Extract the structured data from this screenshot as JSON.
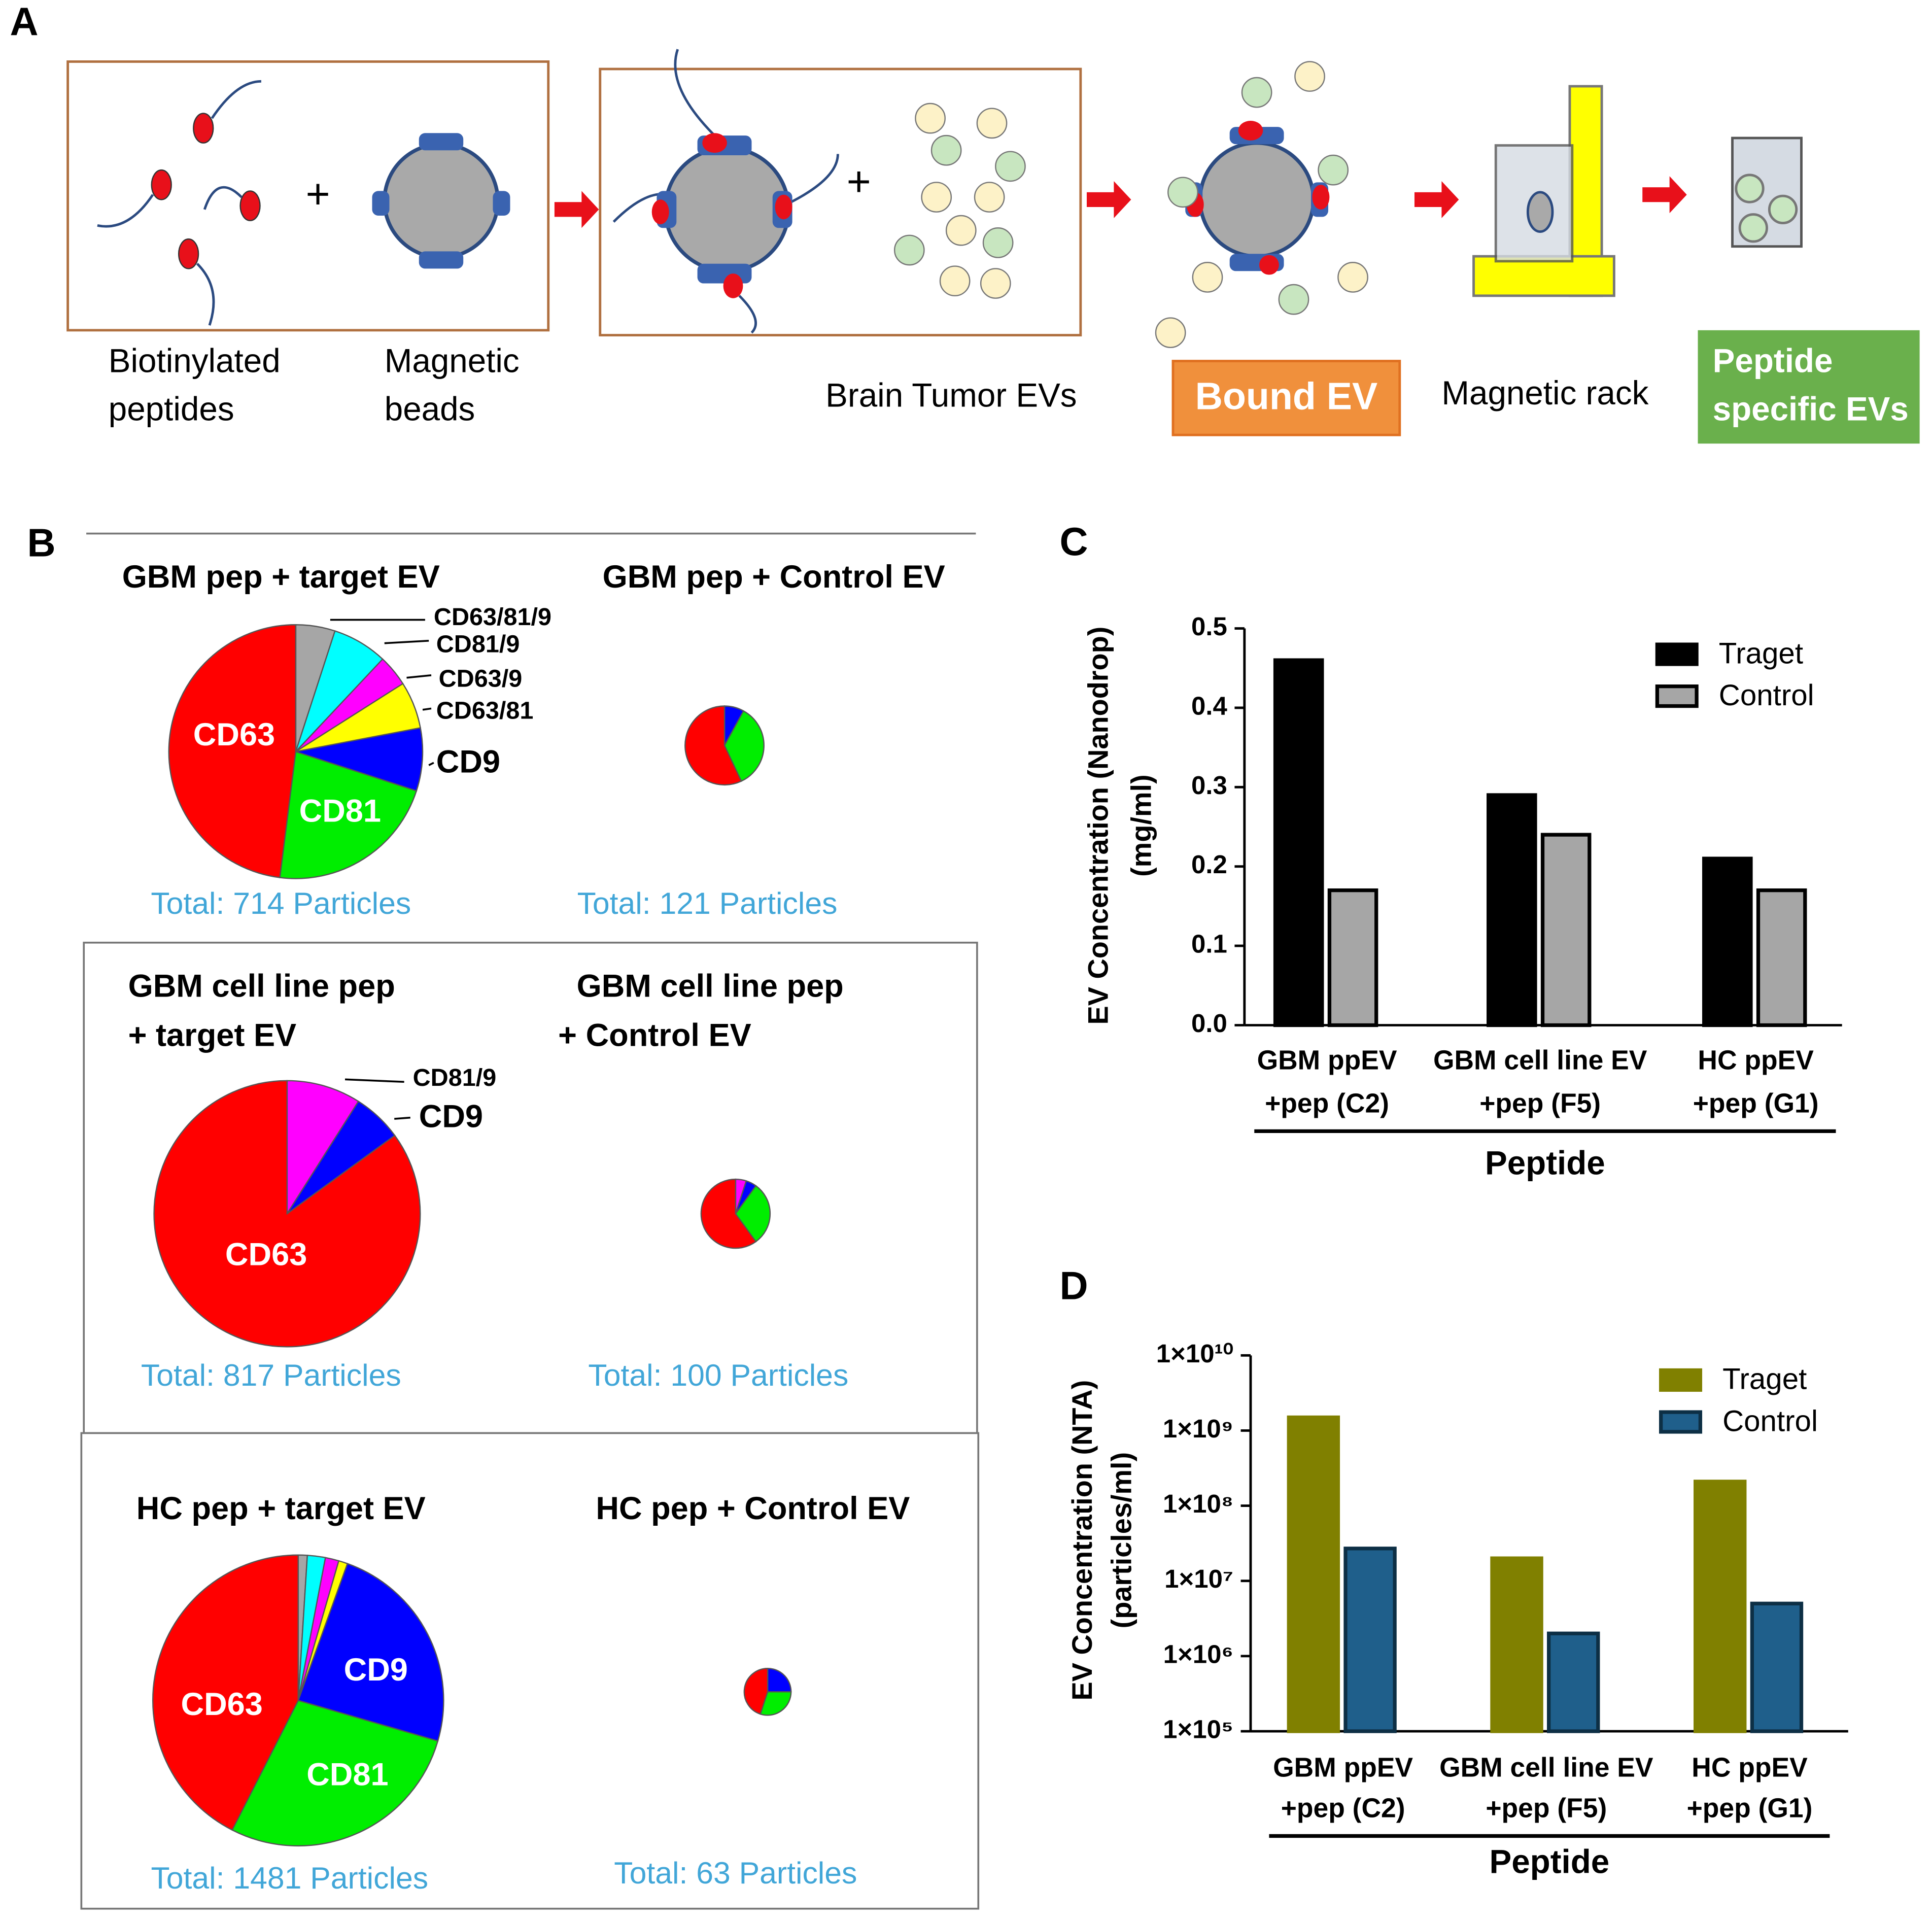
{
  "panel_labels": [
    "A",
    "B",
    "C",
    "D"
  ],
  "panel_a": {
    "peptides": [
      "Biotinylated",
      "peptides"
    ],
    "beads": [
      "Magnetic",
      "beads"
    ],
    "plus": [
      "+",
      "+"
    ],
    "tumor_evs": "Brain Tumor EVs",
    "bound": "Bound EV",
    "rack": "Magnetic rack",
    "specific": [
      "Peptide",
      "specific EVs"
    ]
  },
  "chart_data": [
    {
      "type": "pie",
      "title": [
        "GBM pep + target EV"
      ],
      "total_label": "Total: 714 Particles",
      "categories": [
        "CD63/81/9",
        "CD81/9",
        "CD63/9",
        "CD63/81",
        "CD9",
        "CD81",
        "CD63"
      ],
      "values": [
        5,
        7,
        4,
        6,
        8,
        22,
        48
      ],
      "colors": [
        "#a6a6a6",
        "#00ffff",
        "#ff00ff",
        "#ffff00",
        "#0000ff",
        "#00ee00",
        "#ff0000"
      ]
    },
    {
      "type": "pie",
      "title": [
        "GBM pep + Control EV"
      ],
      "total_label": "Total: 121 Particles",
      "categories": [
        null,
        null,
        null
      ],
      "values": [
        8,
        35,
        57
      ],
      "colors": [
        "#0000ff",
        "#00ee00",
        "#ff0000"
      ]
    },
    {
      "type": "pie",
      "title": [
        "GBM cell line pep",
        "+ target EV"
      ],
      "total_label": "Total: 817 Particles",
      "categories": [
        "CD81/9",
        "CD9",
        "CD63"
      ],
      "values": [
        9,
        6,
        85
      ],
      "colors": [
        "#ff00ff",
        "#0000ff",
        "#ff0000"
      ]
    },
    {
      "type": "pie",
      "title": [
        "GBM cell line pep",
        "+ Control EV"
      ],
      "total_label": "Total: 100 Particles",
      "categories": [
        null,
        null,
        null,
        null
      ],
      "values": [
        5,
        5,
        30,
        60
      ],
      "colors": [
        "#ff00ff",
        "#0000ff",
        "#00ee00",
        "#ff0000"
      ]
    },
    {
      "type": "pie",
      "title": [
        "HC pep + target EV"
      ],
      "total_label": "Total: 1481 Particles",
      "categories": [
        null,
        null,
        null,
        null,
        "CD9",
        "CD81",
        "CD63"
      ],
      "values": [
        1,
        2,
        1.5,
        1,
        24,
        28,
        42.5
      ],
      "colors": [
        "#a6a6a6",
        "#00ffff",
        "#ff00ff",
        "#ffff00",
        "#0000ff",
        "#00ee00",
        "#ff0000"
      ]
    },
    {
      "type": "pie",
      "title": [
        "HC pep + Control EV"
      ],
      "total_label": "Total: 63 Particles",
      "categories": [
        null,
        null,
        null
      ],
      "values": [
        25,
        30,
        45
      ],
      "colors": [
        "#0000ff",
        "#00ee00",
        "#ff0000"
      ]
    },
    {
      "type": "bar",
      "y_label": [
        "EV Concentration (Nanodrop)",
        "(mg/ml)"
      ],
      "x_label": "Peptide",
      "categories": [
        [
          "GBM ppEV",
          "+pep (C2)"
        ],
        [
          "GBM cell line EV",
          "+pep (F5)"
        ],
        [
          "HC ppEV",
          "+pep (G1)"
        ]
      ],
      "series": [
        {
          "name": "Traget",
          "color": "#000000",
          "edge": "#000000",
          "values": [
            0.46,
            0.29,
            0.21
          ]
        },
        {
          "name": "Control",
          "color": "#a6a6a6",
          "edge": "#000000",
          "values": [
            0.17,
            0.24,
            0.17
          ]
        }
      ],
      "ylim": [
        0,
        0.5
      ],
      "yticks": [
        {
          "value": 0,
          "label": "0.0"
        },
        0.1,
        0.2,
        0.3,
        0.4,
        0.5
      ],
      "log_scale": false,
      "grid": false,
      "legend": "upper right"
    },
    {
      "type": "bar",
      "y_label": [
        "EV Concentration (NTA)",
        "(particles/ml)"
      ],
      "x_label": "Peptide",
      "categories": [
        [
          "GBM ppEV",
          "+pep (C2)"
        ],
        [
          "GBM cell line EV",
          "+pep (F5)"
        ],
        [
          "HC ppEV",
          "+pep (G1)"
        ]
      ],
      "series": [
        {
          "name": "Traget",
          "color": "#808000",
          "edge": "#808000",
          "values": [
            1500000000,
            20000000,
            210000000
          ]
        },
        {
          "name": "Control",
          "color": "#1f5f8b",
          "edge": "#0d2f45",
          "values": [
            27000000,
            2000000,
            5000000
          ]
        }
      ],
      "ylim": [
        100000,
        10000000000
      ],
      "yticks": [
        {
          "value": 100000,
          "label": "1×10⁵"
        },
        {
          "value": 1000000,
          "label": "1×10⁶"
        },
        {
          "value": 10000000,
          "label": "1×10⁷"
        },
        {
          "value": 100000000,
          "label": "1×10⁸"
        },
        {
          "value": 1000000000,
          "label": "1×10⁹"
        },
        {
          "value": 10000000000,
          "label": "1×10¹⁰"
        }
      ],
      "log_scale": true,
      "grid": false,
      "legend": "upper right"
    }
  ]
}
